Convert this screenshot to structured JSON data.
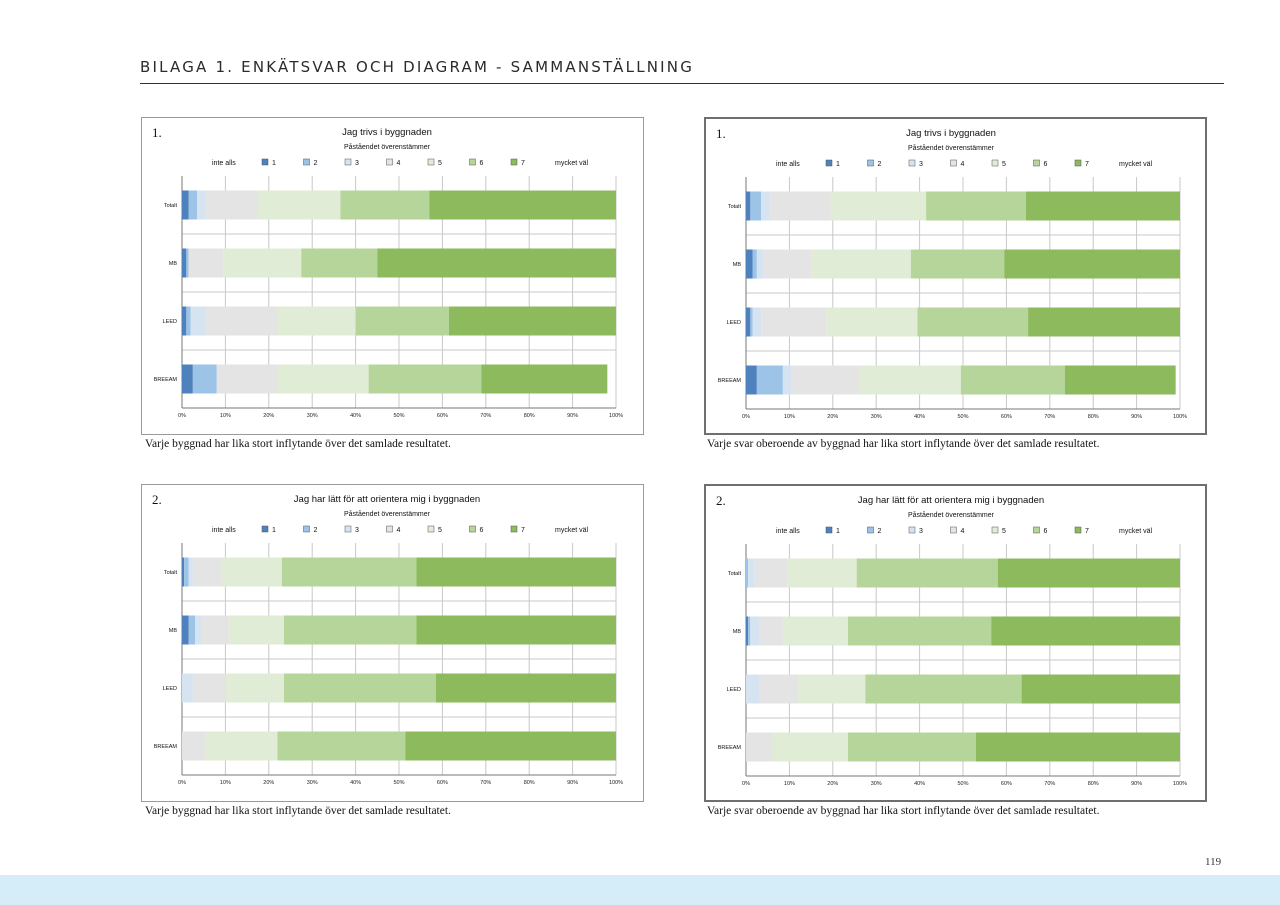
{
  "page": {
    "heading": "BILAGA 1. ENKÄTSVAR OCH DIAGRAM - SAMMANSTÄLLNING",
    "page_number": "119"
  },
  "legend_items": [
    "inte alls",
    "1",
    "2",
    "3",
    "4",
    "5",
    "6",
    "7",
    "mycket väl"
  ],
  "colors": {
    "1": "#4f81bd",
    "2": "#9dc3e6",
    "3": "#d6e4f2",
    "4": "#e4e4e4",
    "5": "#e0ecd6",
    "6": "#b6d59a",
    "7": "#8cba5d"
  },
  "captions": {
    "c1": "Varje byggnad har lika stort inflytande över det samlade resultatet.",
    "c2": "Varje svar oberoende av byggnad har lika stort inflytande över det samlade resultatet.",
    "c3": "Varje byggnad har lika stort inflytande över det samlade resultatet.",
    "c4": "Varje svar oberoende av byggnad har lika stort inflytande över det samlade resultatet."
  },
  "chart_data": [
    {
      "type": "bar",
      "stacked": "100%",
      "orientation": "horizontal",
      "number": "1.",
      "title": "Jag trivs i byggnaden",
      "subtitle": "Påståendet överenstämmer",
      "legend_position": "top",
      "grid": true,
      "xlim": [
        0,
        100
      ],
      "x_ticks": [
        "0%",
        "10%",
        "20%",
        "30%",
        "40%",
        "50%",
        "60%",
        "70%",
        "80%",
        "90%",
        "100%"
      ],
      "categories": [
        "Totalt",
        "MB",
        "LEED",
        "BREEAM"
      ],
      "series": [
        {
          "name": "1",
          "values": [
            1.5,
            1.0,
            1.0,
            2.5
          ]
        },
        {
          "name": "2",
          "values": [
            2.0,
            0.5,
            1.0,
            5.5
          ]
        },
        {
          "name": "3",
          "values": [
            2.0,
            0.0,
            3.5,
            0.0
          ]
        },
        {
          "name": "4",
          "values": [
            12.0,
            8.0,
            16.5,
            14.0
          ]
        },
        {
          "name": "5",
          "values": [
            19.0,
            18.0,
            18.0,
            21.0
          ]
        },
        {
          "name": "6",
          "values": [
            20.5,
            17.5,
            21.5,
            26.0
          ]
        },
        {
          "name": "7",
          "values": [
            43.0,
            55.0,
            38.5,
            29.0
          ]
        }
      ]
    },
    {
      "type": "bar",
      "stacked": "100%",
      "orientation": "horizontal",
      "number": "1.",
      "title": "Jag trivs i byggnaden",
      "subtitle": "Påståendet överenstämmer",
      "legend_position": "top",
      "grid": true,
      "xlim": [
        0,
        100
      ],
      "x_ticks": [
        "0%",
        "10%",
        "20%",
        "30%",
        "40%",
        "50%",
        "60%",
        "70%",
        "80%",
        "90%",
        "100%"
      ],
      "categories": [
        "Totalt",
        "MB",
        "LEED",
        "BREEAM"
      ],
      "series": [
        {
          "name": "1",
          "values": [
            1.0,
            1.5,
            1.0,
            2.5
          ]
        },
        {
          "name": "2",
          "values": [
            2.5,
            1.0,
            0.5,
            6.0
          ]
        },
        {
          "name": "3",
          "values": [
            2.0,
            1.5,
            2.0,
            2.0
          ]
        },
        {
          "name": "4",
          "values": [
            14.0,
            11.0,
            15.0,
            15.5
          ]
        },
        {
          "name": "5",
          "values": [
            22.0,
            23.0,
            21.0,
            23.5
          ]
        },
        {
          "name": "6",
          "values": [
            23.0,
            21.5,
            25.5,
            24.0
          ]
        },
        {
          "name": "7",
          "values": [
            35.5,
            40.5,
            35.0,
            25.5
          ]
        }
      ]
    },
    {
      "type": "bar",
      "stacked": "100%",
      "orientation": "horizontal",
      "number": "2.",
      "title": "Jag har lätt för att orientera mig i byggnaden",
      "subtitle": "Påståendet överenstämmer",
      "legend_position": "top",
      "grid": true,
      "xlim": [
        0,
        100
      ],
      "x_ticks": [
        "0%",
        "10%",
        "20%",
        "30%",
        "40%",
        "50%",
        "60%",
        "70%",
        "80%",
        "90%",
        "100%"
      ],
      "categories": [
        "Totalt",
        "MB",
        "LEED",
        "BREEAM"
      ],
      "series": [
        {
          "name": "1",
          "values": [
            0.5,
            1.5,
            0.0,
            0.0
          ]
        },
        {
          "name": "2",
          "values": [
            1.0,
            1.5,
            0.0,
            0.0
          ]
        },
        {
          "name": "3",
          "values": [
            1.0,
            1.5,
            2.5,
            0.0
          ]
        },
        {
          "name": "4",
          "values": [
            6.5,
            6.5,
            7.5,
            5.5
          ]
        },
        {
          "name": "5",
          "values": [
            14.0,
            12.5,
            13.5,
            16.5
          ]
        },
        {
          "name": "6",
          "values": [
            31.0,
            30.5,
            35.0,
            29.5
          ]
        },
        {
          "name": "7",
          "values": [
            46.0,
            46.0,
            41.5,
            48.5
          ]
        }
      ]
    },
    {
      "type": "bar",
      "stacked": "100%",
      "orientation": "horizontal",
      "number": "2.",
      "title": "Jag har lätt för att orientera mig i byggnaden",
      "subtitle": "Påståendet överenstämmer",
      "legend_position": "top",
      "grid": true,
      "xlim": [
        0,
        100
      ],
      "x_ticks": [
        "0%",
        "10%",
        "20%",
        "30%",
        "40%",
        "50%",
        "60%",
        "70%",
        "80%",
        "90%",
        "100%"
      ],
      "categories": [
        "Totalt",
        "MB",
        "LEED",
        "BREEAM"
      ],
      "series": [
        {
          "name": "1",
          "values": [
            0.0,
            0.5,
            0.0,
            0.0
          ]
        },
        {
          "name": "2",
          "values": [
            0.5,
            0.5,
            0.0,
            0.0
          ]
        },
        {
          "name": "3",
          "values": [
            1.5,
            2.0,
            3.0,
            0.0
          ]
        },
        {
          "name": "4",
          "values": [
            7.5,
            5.5,
            9.0,
            6.0
          ]
        },
        {
          "name": "5",
          "values": [
            16.0,
            15.0,
            15.5,
            17.5
          ]
        },
        {
          "name": "6",
          "values": [
            32.5,
            33.0,
            36.0,
            29.5
          ]
        },
        {
          "name": "7",
          "values": [
            42.0,
            43.5,
            36.5,
            47.0
          ]
        }
      ]
    }
  ]
}
